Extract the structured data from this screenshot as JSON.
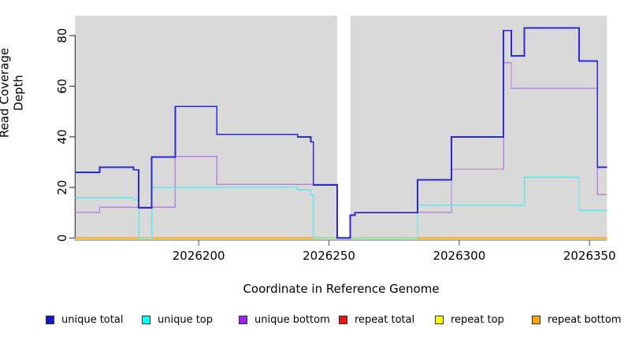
{
  "chart_data": {
    "type": "line",
    "subtype": "step",
    "title": "",
    "xlabel": "Coordinate in Reference Genome",
    "ylabel": "Read Coverage Depth",
    "x_domain": [
      2026152.6,
      2026356.7
    ],
    "y_domain": [
      0,
      88
    ],
    "x_ticks": [
      2026200,
      2026250,
      2026300,
      2026350
    ],
    "x_tick_labels": [
      "2026200",
      "2026250",
      "2026300",
      "2026350"
    ],
    "y_ticks": [
      0,
      20,
      40,
      60,
      80
    ],
    "y_tick_labels": [
      "0",
      "20",
      "40",
      "60",
      "80"
    ],
    "grid": false,
    "plot_background": "#d9d9d9",
    "gap_band": {
      "from": 2026253.2,
      "to": 2026258.2,
      "color": "#ffffff"
    },
    "baseline_overlays": [
      {
        "from": 2026244,
        "to": 2026253.2,
        "value": 0,
        "color": "#8fd98f"
      },
      {
        "from": 2026258.2,
        "to": 2026284,
        "value": 0,
        "color": "#8fd98f"
      }
    ],
    "series": [
      {
        "name": "unique total",
        "color": "#2929d6",
        "legend_color": "#1414cc",
        "width": 1.8,
        "steps": [
          [
            2026152.6,
            26
          ],
          [
            2026162,
            28
          ],
          [
            2026175,
            27
          ],
          [
            2026177,
            12
          ],
          [
            2026182,
            32
          ],
          [
            2026191,
            52
          ],
          [
            2026207,
            41
          ],
          [
            2026238,
            40
          ],
          [
            2026243,
            38
          ],
          [
            2026244,
            21
          ],
          [
            2026253.2,
            0
          ],
          [
            2026258.2,
            9
          ],
          [
            2026260,
            10
          ],
          [
            2026284,
            23
          ],
          [
            2026297,
            40
          ],
          [
            2026317,
            82
          ],
          [
            2026320,
            72
          ],
          [
            2026325,
            83
          ],
          [
            2026346,
            70
          ],
          [
            2026353,
            28
          ]
        ]
      },
      {
        "name": "unique top",
        "color": "#5fe8e8",
        "legend_color": "#00ffff",
        "width": 1.4,
        "steps": [
          [
            2026152.6,
            16
          ],
          [
            2026175,
            15
          ],
          [
            2026177,
            0
          ],
          [
            2026182,
            20
          ],
          [
            2026238,
            19
          ],
          [
            2026243,
            17
          ],
          [
            2026244,
            0
          ],
          [
            2026284,
            13
          ],
          [
            2026325,
            24
          ],
          [
            2026346,
            11
          ]
        ]
      },
      {
        "name": "unique bottom",
        "color": "#b684dc",
        "legend_color": "#a020f0",
        "width": 1.4,
        "steps": [
          [
            2026152.6,
            10
          ],
          [
            2026162,
            12
          ],
          [
            2026191,
            32
          ],
          [
            2026207,
            21
          ],
          [
            2026253.2,
            0
          ],
          [
            2026258.2,
            9
          ],
          [
            2026260,
            10
          ],
          [
            2026297,
            27
          ],
          [
            2026317,
            69
          ],
          [
            2026320,
            59
          ],
          [
            2026353,
            17
          ]
        ]
      },
      {
        "name": "repeat total",
        "color": "#e60000",
        "legend_color": "#ee1111",
        "width": 1.0,
        "steps": [
          [
            2026152.6,
            0
          ]
        ]
      },
      {
        "name": "repeat top",
        "color": "#ffff00",
        "legend_color": "#ffff00",
        "width": 1.0,
        "steps": [
          [
            2026152.6,
            0
          ]
        ]
      },
      {
        "name": "repeat bottom",
        "color": "#ffa500",
        "legend_color": "#ffa500",
        "width": 1.8,
        "steps": [
          [
            2026152.6,
            0
          ]
        ]
      }
    ],
    "legend": [
      {
        "label": "unique total",
        "color": "#1414cc"
      },
      {
        "label": "unique top",
        "color": "#00ffff"
      },
      {
        "label": "unique bottom",
        "color": "#a020f0"
      },
      {
        "label": "repeat total",
        "color": "#ee1111"
      },
      {
        "label": "repeat top",
        "color": "#ffff00"
      },
      {
        "label": "repeat bottom",
        "color": "#ffa500"
      }
    ],
    "legend_position": "bottom"
  }
}
